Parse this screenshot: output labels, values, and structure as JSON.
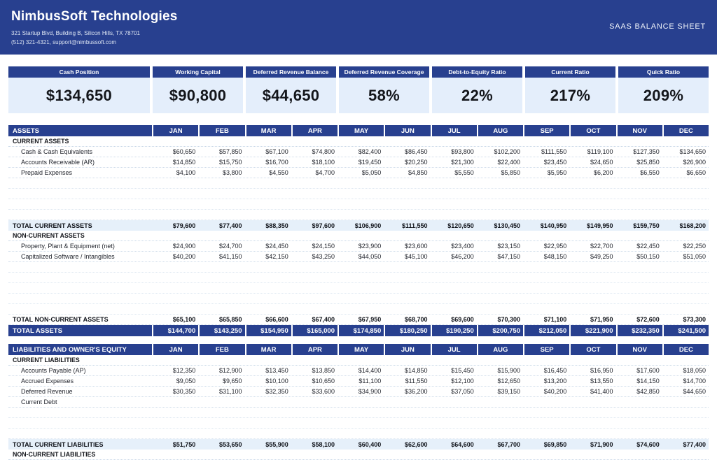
{
  "header": {
    "company": "NimbusSoft Technologies",
    "address": "321 Startup Blvd, Building B, Silicon Hills, TX 78701",
    "contact": "(512) 321-4321, support@nimbussoft.com",
    "doc_title": "SAAS BALANCE SHEET"
  },
  "colors": {
    "navy": "#28408f",
    "kpi_value_bg": "#e4eefb",
    "total_row_bg": "#e6f0fa"
  },
  "kpis": [
    {
      "label": "Cash Position",
      "value": "$134,650"
    },
    {
      "label": "Working Capital",
      "value": "$90,800"
    },
    {
      "label": "Deferred Revenue Balance",
      "value": "$44,650"
    },
    {
      "label": "Deferred Revenue Coverage",
      "value": "58%"
    },
    {
      "label": "Debt-to-Equity Ratio",
      "value": "22%"
    },
    {
      "label": "Current Ratio",
      "value": "217%"
    },
    {
      "label": "Quick Ratio",
      "value": "209%"
    }
  ],
  "sheet": {
    "months": [
      "JAN",
      "FEB",
      "MAR",
      "APR",
      "MAY",
      "JUN",
      "JUL",
      "AUG",
      "SEP",
      "OCT",
      "NOV",
      "DEC"
    ],
    "assets": {
      "title": "ASSETS",
      "rows": [
        {
          "t": "section",
          "label": "CURRENT ASSETS"
        },
        {
          "t": "item",
          "label": "Cash & Cash Equivalents",
          "values": [
            "$60,650",
            "$57,850",
            "$67,100",
            "$74,800",
            "$82,400",
            "$86,450",
            "$93,800",
            "$102,200",
            "$111,550",
            "$119,100",
            "$127,350",
            "$134,650"
          ]
        },
        {
          "t": "item",
          "label": "Accounts Receivable (AR)",
          "values": [
            "$14,850",
            "$15,750",
            "$16,700",
            "$18,100",
            "$19,450",
            "$20,250",
            "$21,300",
            "$22,400",
            "$23,450",
            "$24,650",
            "$25,850",
            "$26,900"
          ]
        },
        {
          "t": "item",
          "label": "Prepaid Expenses",
          "values": [
            "$4,100",
            "$3,800",
            "$4,550",
            "$4,700",
            "$5,050",
            "$4,850",
            "$5,550",
            "$5,850",
            "$5,950",
            "$6,200",
            "$6,550",
            "$6,650"
          ]
        },
        {
          "t": "spacer",
          "n": 4
        },
        {
          "t": "total",
          "label": "TOTAL CURRENT ASSETS",
          "values": [
            "$79,600",
            "$77,400",
            "$88,350",
            "$97,600",
            "$106,900",
            "$111,550",
            "$120,650",
            "$130,450",
            "$140,950",
            "$149,950",
            "$159,750",
            "$168,200"
          ]
        },
        {
          "t": "section",
          "label": "NON-CURRENT ASSETS"
        },
        {
          "t": "item",
          "label": "Property, Plant & Equipment (net)",
          "values": [
            "$24,900",
            "$24,700",
            "$24,450",
            "$24,150",
            "$23,900",
            "$23,600",
            "$23,400",
            "$23,150",
            "$22,950",
            "$22,700",
            "$22,450",
            "$22,250"
          ]
        },
        {
          "t": "item",
          "label": "Capitalized Software / Intangibles",
          "values": [
            "$40,200",
            "$41,150",
            "$42,150",
            "$43,250",
            "$44,050",
            "$45,100",
            "$46,200",
            "$47,150",
            "$48,150",
            "$49,250",
            "$50,150",
            "$51,050"
          ]
        },
        {
          "t": "spacer",
          "n": 5
        },
        {
          "t": "total",
          "variant": "plain",
          "label": "TOTAL NON-CURRENT ASSETS",
          "values": [
            "$65,100",
            "$65,850",
            "$66,600",
            "$67,400",
            "$67,950",
            "$68,700",
            "$69,600",
            "$70,300",
            "$71,100",
            "$71,950",
            "$72,600",
            "$73,300"
          ]
        },
        {
          "t": "grand",
          "label": "TOTAL ASSETS",
          "values": [
            "$144,700",
            "$143,250",
            "$154,950",
            "$165,000",
            "$174,850",
            "$180,250",
            "$190,250",
            "$200,750",
            "$212,050",
            "$221,900",
            "$232,350",
            "$241,500"
          ]
        }
      ]
    },
    "liabilities": {
      "title": "LIABILITIES AND OWNER'S EQUITY",
      "rows": [
        {
          "t": "section",
          "label": "CURRENT LIABILITIES"
        },
        {
          "t": "item",
          "label": "Accounts Payable (AP)",
          "values": [
            "$12,350",
            "$12,900",
            "$13,450",
            "$13,850",
            "$14,400",
            "$14,850",
            "$15,450",
            "$15,900",
            "$16,450",
            "$16,950",
            "$17,600",
            "$18,050"
          ]
        },
        {
          "t": "item",
          "label": "Accrued Expenses",
          "values": [
            "$9,050",
            "$9,650",
            "$10,100",
            "$10,650",
            "$11,100",
            "$11,550",
            "$12,100",
            "$12,650",
            "$13,200",
            "$13,550",
            "$14,150",
            "$14,700"
          ]
        },
        {
          "t": "item",
          "label": "Deferred Revenue",
          "values": [
            "$30,350",
            "$31,100",
            "$32,350",
            "$33,600",
            "$34,900",
            "$36,200",
            "$37,050",
            "$39,150",
            "$40,200",
            "$41,400",
            "$42,850",
            "$44,650"
          ]
        },
        {
          "t": "item",
          "label": "Current Debt",
          "values": [
            "",
            "",
            "",
            "",
            "",
            "",
            "",
            "",
            "",
            "",
            "",
            ""
          ]
        },
        {
          "t": "spacer",
          "n": 3
        },
        {
          "t": "total",
          "label": "TOTAL CURRENT LIABILITIES",
          "values": [
            "$51,750",
            "$53,650",
            "$55,900",
            "$58,100",
            "$60,400",
            "$62,600",
            "$64,600",
            "$67,700",
            "$69,850",
            "$71,900",
            "$74,600",
            "$77,400"
          ]
        },
        {
          "t": "section",
          "label": "NON-CURRENT LIABILITIES"
        }
      ]
    }
  }
}
